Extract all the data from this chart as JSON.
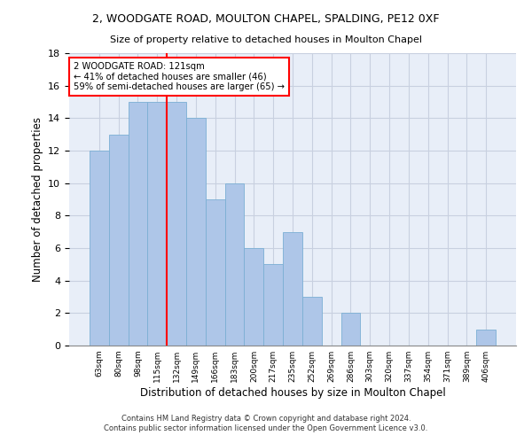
{
  "title1": "2, WOODGATE ROAD, MOULTON CHAPEL, SPALDING, PE12 0XF",
  "title2": "Size of property relative to detached houses in Moulton Chapel",
  "xlabel": "Distribution of detached houses by size in Moulton Chapel",
  "ylabel": "Number of detached properties",
  "categories": [
    "63sqm",
    "80sqm",
    "98sqm",
    "115sqm",
    "132sqm",
    "149sqm",
    "166sqm",
    "183sqm",
    "200sqm",
    "217sqm",
    "235sqm",
    "252sqm",
    "269sqm",
    "286sqm",
    "303sqm",
    "320sqm",
    "337sqm",
    "354sqm",
    "371sqm",
    "389sqm",
    "406sqm"
  ],
  "values": [
    12,
    13,
    15,
    15,
    15,
    14,
    9,
    10,
    6,
    5,
    7,
    3,
    0,
    2,
    0,
    0,
    0,
    0,
    0,
    0,
    1
  ],
  "bar_color": "#aec6e8",
  "bar_edge_color": "#7bafd4",
  "background_color": "#e8eef8",
  "grid_color": "#c8d0e0",
  "vline_x_index": 3.5,
  "vline_color": "red",
  "annotation_text": "2 WOODGATE ROAD: 121sqm\n← 41% of detached houses are smaller (46)\n59% of semi-detached houses are larger (65) →",
  "annotation_box_color": "white",
  "annotation_box_edge": "red",
  "ylim": [
    0,
    18
  ],
  "yticks": [
    0,
    2,
    4,
    6,
    8,
    10,
    12,
    14,
    16,
    18
  ],
  "footer1": "Contains HM Land Registry data © Crown copyright and database right 2024.",
  "footer2": "Contains public sector information licensed under the Open Government Licence v3.0."
}
